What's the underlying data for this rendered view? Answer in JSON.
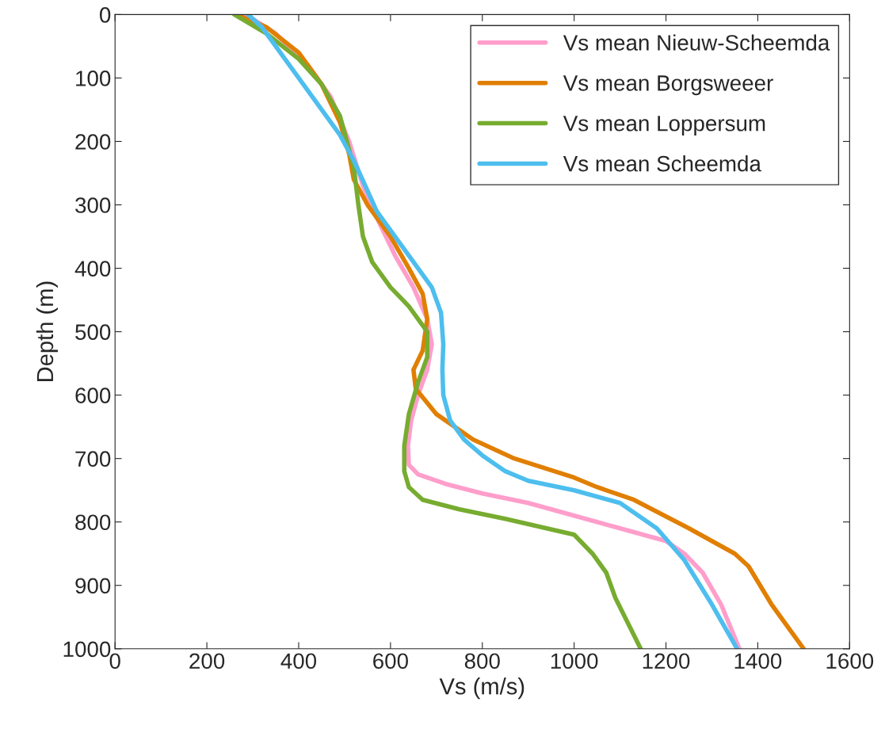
{
  "chart_data": {
    "type": "line",
    "xlabel": "Vs (m/s)",
    "ylabel": "Depth (m)",
    "xlim": [
      0,
      1600
    ],
    "xticks": [
      0,
      200,
      400,
      600,
      800,
      1000,
      1200,
      1400,
      1600
    ],
    "ylim": [
      1000,
      0
    ],
    "yticks": [
      0,
      100,
      200,
      300,
      400,
      500,
      600,
      700,
      800,
      900,
      1000
    ],
    "grid": false,
    "legend": "top right",
    "line_style": "solid",
    "marker": "none",
    "series": [
      {
        "name": "Vs mean Nieuw-Scheemda",
        "color": "#ff9ecb",
        "x": [
          285,
          350,
          420,
          470,
          510,
          540,
          570,
          610,
          650,
          680,
          690,
          680,
          660,
          645,
          638,
          640,
          660,
          720,
          800,
          900,
          1000,
          1100,
          1200,
          1240,
          1280,
          1320,
          1360
        ],
        "values": [
          0,
          30,
          80,
          130,
          200,
          270,
          320,
          380,
          430,
          480,
          520,
          560,
          600,
          640,
          680,
          710,
          725,
          740,
          755,
          770,
          790,
          810,
          830,
          850,
          880,
          930,
          1000
        ]
      },
      {
        "name": "Vs mean Borgsweeer",
        "color": "#e07f00",
        "x": [
          265,
          330,
          400,
          450,
          490,
          510,
          520,
          550,
          600,
          640,
          670,
          680,
          670,
          650,
          655,
          700,
          780,
          870,
          1000,
          1050,
          1130,
          1250,
          1350,
          1380,
          1430,
          1500
        ],
        "values": [
          0,
          20,
          60,
          110,
          170,
          220,
          260,
          300,
          350,
          400,
          440,
          480,
          530,
          560,
          590,
          630,
          670,
          700,
          730,
          745,
          765,
          810,
          850,
          870,
          930,
          1000
        ]
      },
      {
        "name": "Vs mean Loppersum",
        "color": "#77ac30",
        "x": [
          260,
          330,
          400,
          450,
          490,
          520,
          530,
          540,
          560,
          600,
          640,
          680,
          680,
          660,
          640,
          630,
          630,
          640,
          670,
          750,
          850,
          940,
          1000,
          1040,
          1070,
          1090,
          1145
        ],
        "values": [
          0,
          30,
          70,
          110,
          160,
          240,
          300,
          350,
          390,
          430,
          460,
          500,
          540,
          580,
          630,
          680,
          720,
          745,
          765,
          780,
          795,
          810,
          820,
          850,
          880,
          920,
          1000
        ]
      },
      {
        "name": "Vs mean Scheemda",
        "color": "#4dbeee",
        "x": [
          290,
          320,
          360,
          400,
          440,
          490,
          520,
          545,
          570,
          620,
          660,
          690,
          710,
          715,
          713,
          715,
          730,
          760,
          800,
          850,
          900,
          1000,
          1100,
          1180,
          1240,
          1300,
          1355
        ],
        "values": [
          0,
          20,
          60,
          100,
          140,
          190,
          230,
          270,
          310,
          360,
          400,
          430,
          470,
          520,
          560,
          600,
          640,
          670,
          695,
          720,
          735,
          750,
          770,
          810,
          860,
          930,
          1000
        ]
      }
    ]
  }
}
